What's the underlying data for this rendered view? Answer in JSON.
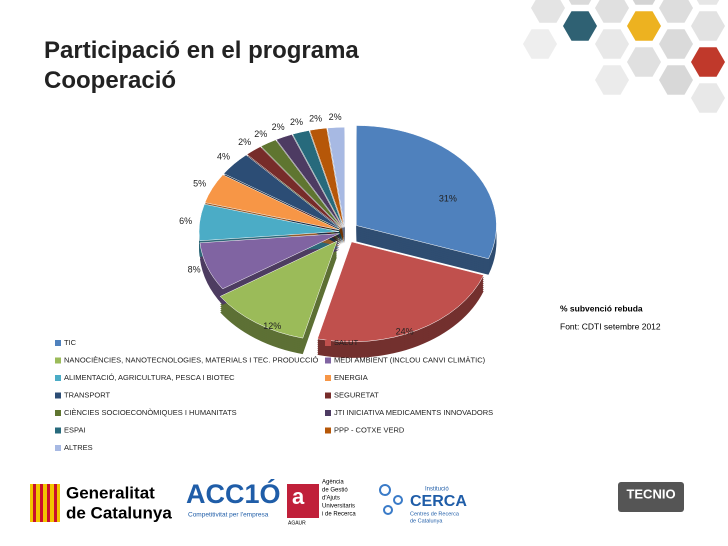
{
  "chart_data": {
    "type": "pie",
    "title": "Participació en el programa Cooperació",
    "subtitle": "% subvenció rebuda",
    "source": "Font: CDTI setembre 2012",
    "categories": [
      "TIC",
      "SALUT",
      "NANOCIÈNCIES, NANOTECNOLOGIES, MATERIALS I TEC. PRODUCCIÓ",
      "MEDI AMBIENT (INCLOU CANVI CLIMÀTIC)",
      "ALIMENTACIÓ, AGRICULTURA, PESCA I BIOTEC",
      "ENERGIA",
      "TRANSPORT",
      "SEGURETAT",
      "CIÈNCIES SOCIOECONÒMIQUES I HUMANITATS",
      "JTI INICIATIVA MEDICAMENTS INNOVADORS",
      "ESPAI",
      "PPP - COTXE VERD",
      "ALTRES"
    ],
    "values": [
      31,
      24,
      12,
      8,
      6,
      5,
      4,
      2,
      2,
      2,
      2,
      2,
      2
    ],
    "value_labels": [
      "31%",
      "24%",
      "12%",
      "8%",
      "6%",
      "5%",
      "4%",
      "2%",
      "2%",
      "2%",
      "2%",
      "2%",
      "2%"
    ],
    "colors": [
      "#4F81BD",
      "#C0504D",
      "#9BBB59",
      "#8064A2",
      "#4BACC6",
      "#F79646",
      "#2C4D75",
      "#772C2A",
      "#5F7530",
      "#4D3B62",
      "#276A7C",
      "#B65708",
      "#A7B9E3"
    ]
  },
  "logos": {
    "generalitat": [
      "Generalitat",
      "de Catalunya"
    ],
    "accio": [
      "ACC1Ó",
      "Competitivitat per l'empresa"
    ],
    "agaur": [
      "a",
      "AGAUR",
      "Agència",
      "de Gestió",
      "d'Ajuts",
      "Universitaris",
      "i de Recerca"
    ],
    "cerca": [
      "Institució",
      "CERCA",
      "Centres de Recerca",
      "de Catalunya"
    ],
    "tecnio": "TECNIO"
  }
}
